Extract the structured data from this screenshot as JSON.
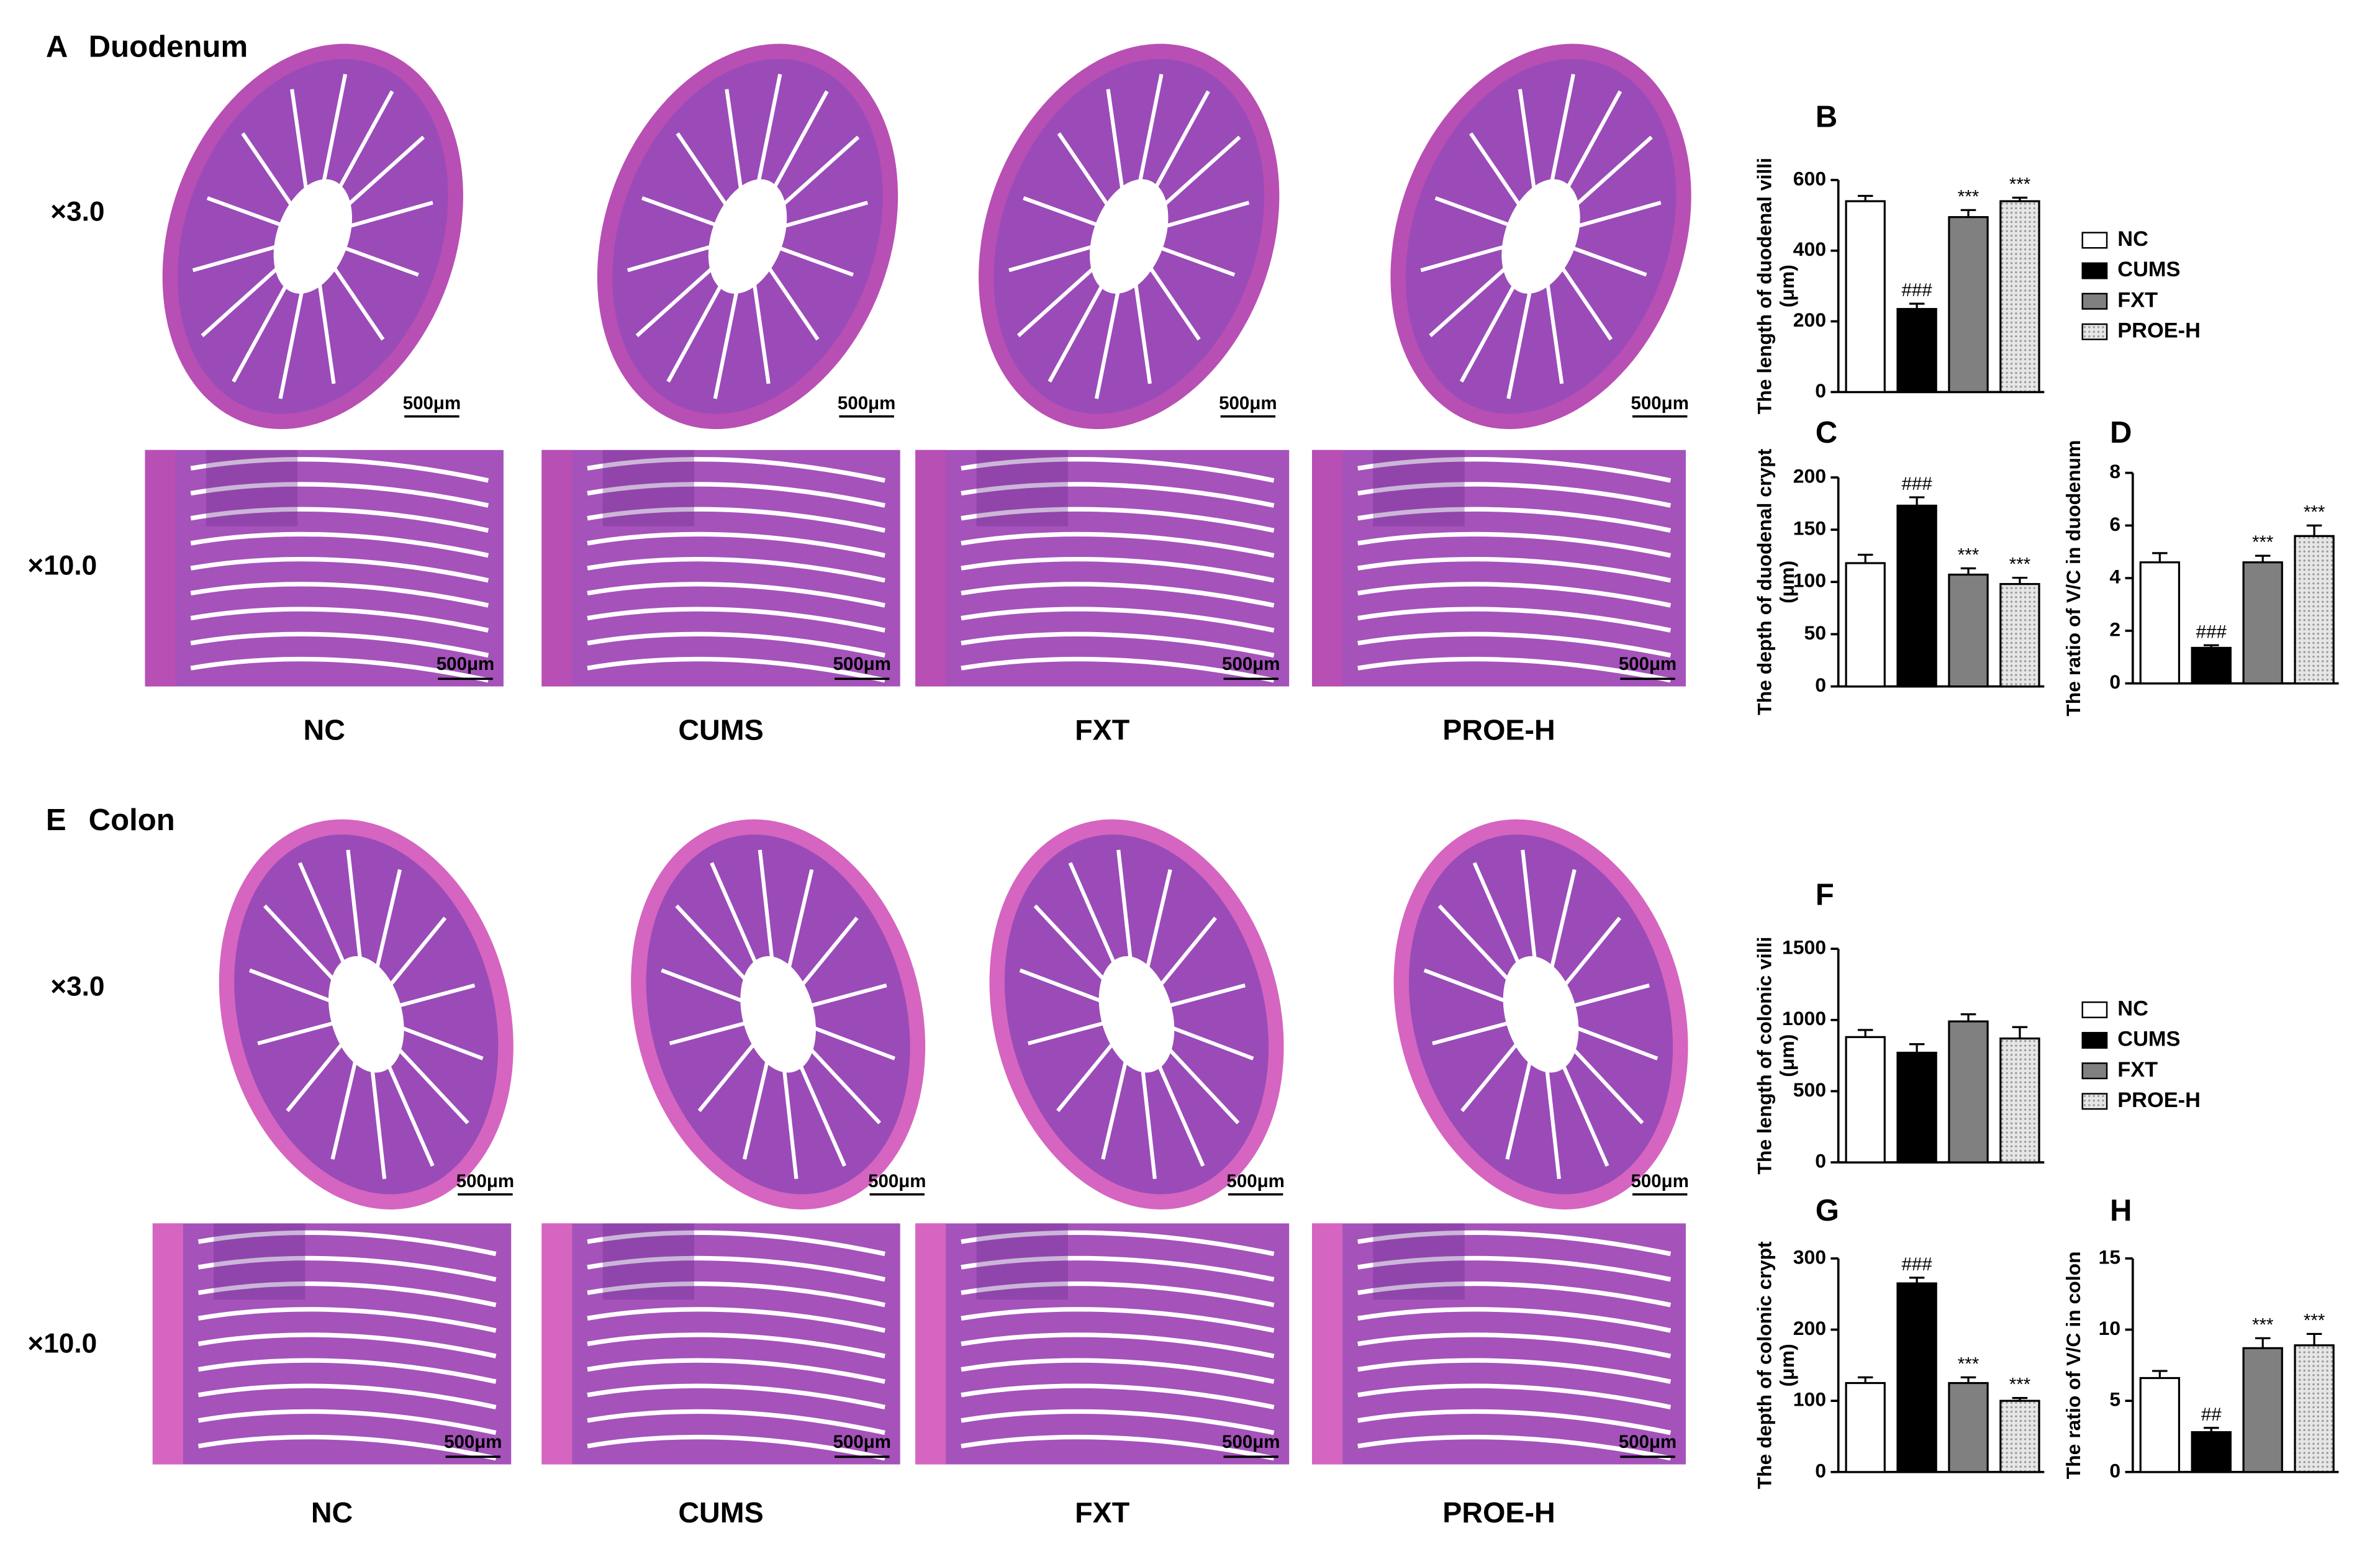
{
  "sections": [
    {
      "letter": "A",
      "title": "Duodenum",
      "magnifications": [
        "×3.0",
        "×10.0"
      ],
      "scale_bar": "500μm",
      "groups": [
        "NC",
        "CUMS",
        "FXT",
        "PROE-H"
      ]
    },
    {
      "letter": "E",
      "title": "Colon",
      "magnifications": [
        "×3.0",
        "×10.0"
      ],
      "scale_bar": "500μm",
      "groups": [
        "NC",
        "CUMS",
        "FXT",
        "PROE-H"
      ]
    }
  ],
  "chart_data": [
    {
      "type": "bar",
      "panel": "B",
      "ylabel": [
        "The length of duodenal villi",
        "(μm)"
      ],
      "categories": [
        "NC",
        "CUMS",
        "FXT",
        "PROE-H"
      ],
      "colors": [
        "#ffffff",
        "#000000",
        "#808080",
        "#d9d9d9"
      ],
      "values": [
        540,
        235,
        495,
        540
      ],
      "errors": [
        15,
        15,
        20,
        10
      ],
      "significance": [
        null,
        "###",
        "***",
        "***"
      ],
      "ylim": [
        0,
        600
      ],
      "yticks": [
        0,
        200,
        400,
        600
      ],
      "legend": true
    },
    {
      "type": "bar",
      "panel": "C",
      "ylabel": [
        "The depth of duodenal crypt",
        "(μm)"
      ],
      "categories": [
        "NC",
        "CUMS",
        "FXT",
        "PROE-H"
      ],
      "colors": [
        "#ffffff",
        "#000000",
        "#808080",
        "#d9d9d9"
      ],
      "values": [
        118,
        173,
        107,
        98
      ],
      "errors": [
        8,
        8,
        6,
        6
      ],
      "significance": [
        null,
        "###",
        "***",
        "***"
      ],
      "ylim": [
        0,
        200
      ],
      "yticks": [
        0,
        50,
        100,
        150,
        200
      ],
      "legend": false
    },
    {
      "type": "bar",
      "panel": "D",
      "ylabel": [
        "The ratio of V/C in duodenum"
      ],
      "categories": [
        "NC",
        "CUMS",
        "FXT",
        "PROE-H"
      ],
      "colors": [
        "#ffffff",
        "#000000",
        "#808080",
        "#d9d9d9"
      ],
      "values": [
        4.6,
        1.35,
        4.6,
        5.6
      ],
      "errors": [
        0.35,
        0.1,
        0.25,
        0.4
      ],
      "significance": [
        null,
        "###",
        "***",
        "***"
      ],
      "ylim": [
        0,
        8
      ],
      "yticks": [
        0,
        2,
        4,
        6,
        8
      ],
      "legend": false
    },
    {
      "type": "bar",
      "panel": "F",
      "ylabel": [
        "The length of colonic villi",
        "(μm)"
      ],
      "categories": [
        "NC",
        "CUMS",
        "FXT",
        "PROE-H"
      ],
      "colors": [
        "#ffffff",
        "#000000",
        "#808080",
        "#d9d9d9"
      ],
      "values": [
        880,
        770,
        990,
        870
      ],
      "errors": [
        50,
        60,
        50,
        80
      ],
      "significance": [
        null,
        null,
        null,
        null
      ],
      "ylim": [
        0,
        1500
      ],
      "yticks": [
        0,
        500,
        1000,
        1500
      ],
      "legend": true
    },
    {
      "type": "bar",
      "panel": "G",
      "ylabel": [
        "The depth of colonic crypt",
        "(μm)"
      ],
      "categories": [
        "NC",
        "CUMS",
        "FXT",
        "PROE-H"
      ],
      "colors": [
        "#ffffff",
        "#000000",
        "#808080",
        "#d9d9d9"
      ],
      "values": [
        125,
        265,
        125,
        100
      ],
      "errors": [
        8,
        8,
        8,
        4
      ],
      "significance": [
        null,
        "###",
        "***",
        "***"
      ],
      "ylim": [
        0,
        300
      ],
      "yticks": [
        0,
        100,
        200,
        300
      ],
      "legend": false
    },
    {
      "type": "bar",
      "panel": "H",
      "ylabel": [
        "The ratio of V/C in colon"
      ],
      "categories": [
        "NC",
        "CUMS",
        "FXT",
        "PROE-H"
      ],
      "colors": [
        "#ffffff",
        "#000000",
        "#808080",
        "#d9d9d9"
      ],
      "values": [
        6.6,
        2.8,
        8.7,
        8.9
      ],
      "errors": [
        0.5,
        0.3,
        0.7,
        0.8
      ],
      "significance": [
        null,
        "##",
        "***",
        "***"
      ],
      "ylim": [
        0,
        15
      ],
      "yticks": [
        0,
        5,
        10,
        15
      ],
      "legend": false
    }
  ]
}
